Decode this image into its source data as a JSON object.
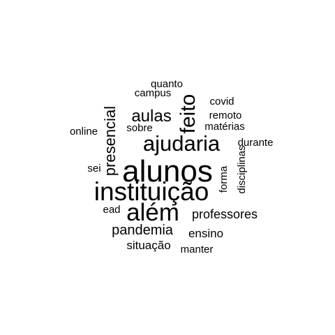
{
  "words": [
    {
      "text": "alunos",
      "weight": 10
    },
    {
      "text": "instituição",
      "weight": 9
    },
    {
      "text": "além",
      "weight": 8
    },
    {
      "text": "ajudaria",
      "weight": 7
    },
    {
      "text": "feito",
      "weight": 6
    },
    {
      "text": "aulas",
      "weight": 5
    },
    {
      "text": "presencial",
      "weight": 5
    },
    {
      "text": "pandemia",
      "weight": 4
    },
    {
      "text": "professores",
      "weight": 4
    },
    {
      "text": "situação",
      "weight": 3
    },
    {
      "text": "ensino",
      "weight": 3
    },
    {
      "text": "disciplinas",
      "weight": 2
    },
    {
      "text": "manter",
      "weight": 2
    },
    {
      "text": "forma",
      "weight": 2
    },
    {
      "text": "durante",
      "weight": 2
    },
    {
      "text": "matérias",
      "weight": 2
    },
    {
      "text": "remoto",
      "weight": 2
    },
    {
      "text": "covid",
      "weight": 2
    },
    {
      "text": "quanto",
      "weight": 2
    },
    {
      "text": "campus",
      "weight": 2
    },
    {
      "text": "sobre",
      "weight": 2
    },
    {
      "text": "online",
      "weight": 2
    },
    {
      "text": "sei",
      "weight": 2
    },
    {
      "text": "ead",
      "weight": 2
    }
  ]
}
